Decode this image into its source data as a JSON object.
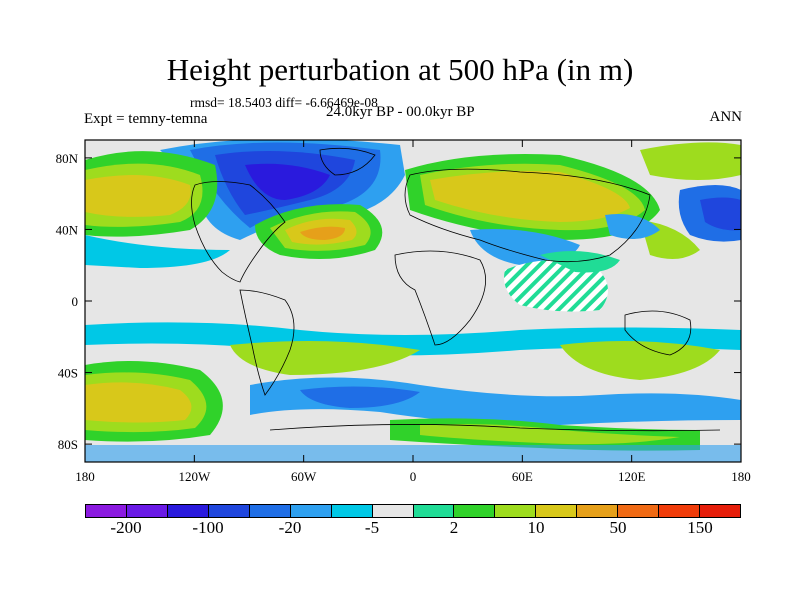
{
  "title": "Height perturbation at 500 hPa (in m)",
  "stats": "rmsd= 18.5403 diff= -6.66469e-08",
  "left_label": "Expt = temny-temna",
  "center_label": "24.0kyr BP - 00.0kyr BP",
  "right_label": "ANN",
  "x_ticks": [
    "180",
    "120W",
    "60W",
    "0",
    "60E",
    "120E",
    "180"
  ],
  "y_ticks": [
    "80N",
    "40N",
    "0",
    "40S",
    "80S"
  ],
  "colorbar": {
    "colors": [
      "#8b1ae0",
      "#6a1ae6",
      "#2a1add",
      "#1f46dd",
      "#1f6ee6",
      "#2ea0f0",
      "#00c8e6",
      "#e6e6e6",
      "#20dc96",
      "#30d22a",
      "#9edc1e",
      "#d8c81a",
      "#e6a01a",
      "#f06a14",
      "#f03c0a",
      "#e61e0a"
    ],
    "labels": [
      {
        "text": "-200",
        "boundary": 1
      },
      {
        "text": "-100",
        "boundary": 3
      },
      {
        "text": "-20",
        "boundary": 5
      },
      {
        "text": "-5",
        "boundary": 7
      },
      {
        "text": "2",
        "boundary": 9
      },
      {
        "text": "10",
        "boundary": 11
      },
      {
        "text": "50",
        "boundary": 13
      },
      {
        "text": "150",
        "boundary": 15
      }
    ]
  }
}
